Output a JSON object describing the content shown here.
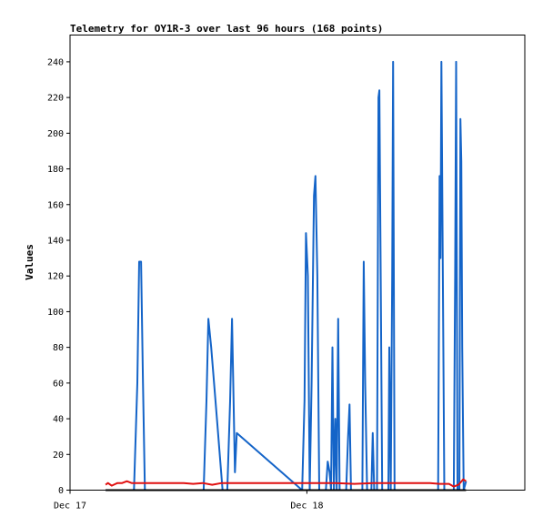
{
  "chart_data": {
    "type": "line",
    "title": "Telemetry for OY1R-3 over last 96 hours (168 points)",
    "xlabel": "",
    "ylabel": "Values",
    "x_range": [
      0,
      96
    ],
    "ylim": [
      0,
      255
    ],
    "yticks": [
      0,
      20,
      40,
      60,
      80,
      100,
      120,
      140,
      160,
      180,
      200,
      220,
      240
    ],
    "xticks": [
      {
        "x": 0,
        "label": "Dec 17"
      },
      {
        "x": 50,
        "label": "Dec 18"
      }
    ],
    "grid": false,
    "legend": "none",
    "series": [
      {
        "color": "#1464c8",
        "points": [
          [
            7.5,
            0
          ],
          [
            13.5,
            0
          ],
          [
            14.2,
            60
          ],
          [
            14.6,
            128
          ],
          [
            15.0,
            128
          ],
          [
            15.4,
            60
          ],
          [
            15.8,
            0
          ],
          [
            28.2,
            0
          ],
          [
            28.8,
            50
          ],
          [
            29.2,
            96
          ],
          [
            29.8,
            80
          ],
          [
            31.0,
            40
          ],
          [
            32.2,
            0
          ],
          [
            33.2,
            0
          ],
          [
            33.8,
            50
          ],
          [
            34.2,
            96
          ],
          [
            34.8,
            10
          ],
          [
            35.2,
            32
          ],
          [
            49.0,
            0
          ],
          [
            49.5,
            50
          ],
          [
            49.8,
            144
          ],
          [
            50.2,
            120
          ],
          [
            50.6,
            0
          ],
          [
            51.0,
            60
          ],
          [
            51.5,
            165
          ],
          [
            51.8,
            176
          ],
          [
            52.2,
            120
          ],
          [
            52.6,
            0
          ],
          [
            54.0,
            0
          ],
          [
            54.4,
            16
          ],
          [
            54.8,
            10
          ],
          [
            55.1,
            0
          ],
          [
            55.4,
            80
          ],
          [
            55.7,
            0
          ],
          [
            56.0,
            40
          ],
          [
            56.3,
            0
          ],
          [
            56.6,
            96
          ],
          [
            56.9,
            0
          ],
          [
            58.3,
            0
          ],
          [
            58.7,
            30
          ],
          [
            59.0,
            48
          ],
          [
            59.3,
            0
          ],
          [
            61.7,
            0
          ],
          [
            62.0,
            128
          ],
          [
            62.3,
            60
          ],
          [
            62.7,
            0
          ],
          [
            63.6,
            0
          ],
          [
            63.9,
            32
          ],
          [
            64.2,
            0
          ],
          [
            64.8,
            0
          ],
          [
            65.1,
            220
          ],
          [
            65.3,
            224
          ],
          [
            65.6,
            110
          ],
          [
            65.9,
            0
          ],
          [
            67.2,
            0
          ],
          [
            67.4,
            80
          ],
          [
            67.7,
            0
          ],
          [
            68.0,
            120
          ],
          [
            68.2,
            240
          ],
          [
            68.5,
            0
          ],
          [
            77.7,
            0
          ],
          [
            78.0,
            176
          ],
          [
            78.2,
            130
          ],
          [
            78.4,
            240
          ],
          [
            78.7,
            120
          ],
          [
            79.0,
            0
          ],
          [
            81.0,
            0
          ],
          [
            81.3,
            120
          ],
          [
            81.5,
            240
          ],
          [
            81.8,
            0
          ],
          [
            82.2,
            0
          ],
          [
            82.4,
            208
          ],
          [
            82.6,
            184
          ],
          [
            82.8,
            80
          ],
          [
            83.1,
            0
          ],
          [
            83.6,
            5
          ]
        ]
      },
      {
        "color": "#e01010",
        "points": [
          [
            7.5,
            3
          ],
          [
            8.0,
            4
          ],
          [
            8.8,
            2.5
          ],
          [
            10.0,
            4
          ],
          [
            11.0,
            4
          ],
          [
            12.0,
            5
          ],
          [
            13.0,
            4
          ],
          [
            16.0,
            4
          ],
          [
            20.0,
            4
          ],
          [
            24.0,
            4
          ],
          [
            26.0,
            3.5
          ],
          [
            28.0,
            4
          ],
          [
            30.0,
            3
          ],
          [
            32.0,
            4
          ],
          [
            36.0,
            4
          ],
          [
            40.0,
            4
          ],
          [
            44.0,
            4
          ],
          [
            48.0,
            4
          ],
          [
            52.0,
            4
          ],
          [
            56.0,
            4
          ],
          [
            60.0,
            3.5
          ],
          [
            64.0,
            4
          ],
          [
            68.0,
            4
          ],
          [
            72.0,
            4
          ],
          [
            76.0,
            4
          ],
          [
            78.0,
            3.5
          ],
          [
            80.0,
            3.5
          ],
          [
            81.0,
            2
          ],
          [
            82.0,
            3
          ],
          [
            83.0,
            6
          ],
          [
            83.6,
            5
          ]
        ]
      },
      {
        "color": "#000000",
        "points": [
          [
            7.5,
            0
          ],
          [
            83.6,
            0
          ]
        ]
      }
    ]
  }
}
